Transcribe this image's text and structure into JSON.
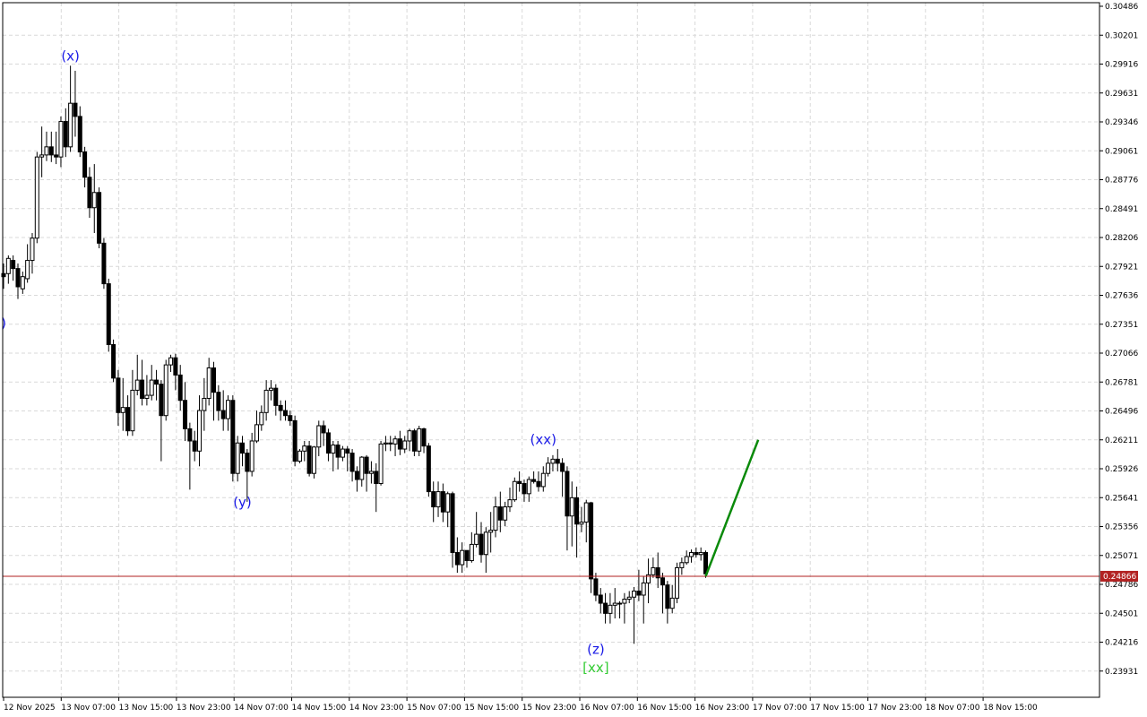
{
  "chart_data": {
    "type": "candlestick",
    "grid": true,
    "colors": {
      "bull_body": "#ffffff",
      "bear_body": "#000000",
      "wick": "#000000",
      "price_line": "#b22222",
      "price_tag_bg": "#b22222",
      "projection": "#0a8a0a",
      "wave_label": "#1a1ae6",
      "wave_label_alt": "#33cc33",
      "grid": "#d9d9d9"
    },
    "ylim": [
      0.23761,
      0.30486
    ],
    "y_ticks": [
      "0.30486",
      "0.30201",
      "0.29916",
      "0.29631",
      "0.29346",
      "0.29061",
      "0.28776",
      "0.28491",
      "0.28206",
      "0.27921",
      "0.27636",
      "0.27351",
      "0.27066",
      "0.26781",
      "0.26496",
      "0.26211",
      "0.25926",
      "0.25641",
      "0.25356",
      "0.25071",
      "0.24786",
      "0.24501",
      "0.24216",
      "0.23931"
    ],
    "x_ticks": [
      "12 Nov 2025",
      "13 Nov 07:00",
      "13 Nov 15:00",
      "13 Nov 23:00",
      "14 Nov 07:00",
      "14 Nov 15:00",
      "14 Nov 23:00",
      "15 Nov 07:00",
      "15 Nov 15:00",
      "15 Nov 23:00",
      "16 Nov 07:00",
      "16 Nov 15:00",
      "16 Nov 23:00",
      "17 Nov 07:00",
      "17 Nov 15:00",
      "17 Nov 23:00",
      "18 Nov 07:00",
      "18 Nov 15:00"
    ],
    "current_price": "0.24866",
    "candles": [
      [
        0.2785,
        0.2782,
        0.277,
        0.2795
      ],
      [
        0.2785,
        0.28,
        0.2775,
        0.2803
      ],
      [
        0.2798,
        0.279,
        0.2778,
        0.2803
      ],
      [
        0.279,
        0.2772,
        0.276,
        0.2795
      ],
      [
        0.277,
        0.2782,
        0.2765,
        0.2787
      ],
      [
        0.278,
        0.2798,
        0.2776,
        0.2814
      ],
      [
        0.2798,
        0.282,
        0.2785,
        0.2825
      ],
      [
        0.282,
        0.29,
        0.2815,
        0.2905
      ],
      [
        0.29,
        0.2902,
        0.288,
        0.293
      ],
      [
        0.2902,
        0.291,
        0.2896,
        0.2925
      ],
      [
        0.291,
        0.2902,
        0.2895,
        0.2925
      ],
      [
        0.2902,
        0.29,
        0.2893,
        0.2925
      ],
      [
        0.29,
        0.2935,
        0.289,
        0.294
      ],
      [
        0.2935,
        0.291,
        0.29,
        0.2948
      ],
      [
        0.291,
        0.2953,
        0.2905,
        0.299
      ],
      [
        0.2953,
        0.294,
        0.292,
        0.2985
      ],
      [
        0.294,
        0.2905,
        0.29,
        0.295
      ],
      [
        0.2905,
        0.288,
        0.287,
        0.291
      ],
      [
        0.288,
        0.285,
        0.284,
        0.289
      ],
      [
        0.285,
        0.2865,
        0.2825,
        0.2893
      ],
      [
        0.2865,
        0.2815,
        0.281,
        0.287
      ],
      [
        0.2815,
        0.2775,
        0.277,
        0.282
      ],
      [
        0.2775,
        0.2715,
        0.2708,
        0.278
      ],
      [
        0.2715,
        0.2682,
        0.2678,
        0.272
      ],
      [
        0.2682,
        0.2648,
        0.2635,
        0.269
      ],
      [
        0.2648,
        0.2653,
        0.263,
        0.2682
      ],
      [
        0.2653,
        0.263,
        0.2625,
        0.2665
      ],
      [
        0.263,
        0.267,
        0.2625,
        0.269
      ],
      [
        0.267,
        0.268,
        0.2665,
        0.2705
      ],
      [
        0.268,
        0.2662,
        0.2655,
        0.27
      ],
      [
        0.2662,
        0.2665,
        0.2655,
        0.2685
      ],
      [
        0.2665,
        0.268,
        0.266,
        0.2695
      ],
      [
        0.268,
        0.2676,
        0.266,
        0.269
      ],
      [
        0.2676,
        0.2645,
        0.26,
        0.268
      ],
      [
        0.2645,
        0.2695,
        0.264,
        0.27
      ],
      [
        0.2695,
        0.2702,
        0.2688,
        0.2705
      ],
      [
        0.2702,
        0.2685,
        0.267,
        0.2706
      ],
      [
        0.2685,
        0.266,
        0.265,
        0.2695
      ],
      [
        0.266,
        0.2632,
        0.262,
        0.2678
      ],
      [
        0.2632,
        0.262,
        0.2572,
        0.2638
      ],
      [
        0.262,
        0.261,
        0.26,
        0.263
      ],
      [
        0.261,
        0.265,
        0.2595,
        0.2665
      ],
      [
        0.265,
        0.2662,
        0.263,
        0.2682
      ],
      [
        0.2662,
        0.2692,
        0.2655,
        0.2702
      ],
      [
        0.2692,
        0.2668,
        0.264,
        0.2698
      ],
      [
        0.2668,
        0.265,
        0.264,
        0.2675
      ],
      [
        0.265,
        0.2642,
        0.263,
        0.267
      ],
      [
        0.2642,
        0.266,
        0.263,
        0.2665
      ],
      [
        0.266,
        0.2588,
        0.258,
        0.2665
      ],
      [
        0.2588,
        0.2618,
        0.258,
        0.2625
      ],
      [
        0.2618,
        0.2608,
        0.2595,
        0.2625
      ],
      [
        0.2608,
        0.259,
        0.256,
        0.2612
      ],
      [
        0.259,
        0.262,
        0.2585,
        0.2628
      ],
      [
        0.262,
        0.2636,
        0.2618,
        0.265
      ],
      [
        0.2636,
        0.2648,
        0.263,
        0.2655
      ],
      [
        0.2648,
        0.267,
        0.264,
        0.268
      ],
      [
        0.267,
        0.2672,
        0.266,
        0.268
      ],
      [
        0.2672,
        0.2655,
        0.2645,
        0.2676
      ],
      [
        0.2655,
        0.265,
        0.264,
        0.266
      ],
      [
        0.265,
        0.2645,
        0.264,
        0.266
      ],
      [
        0.2645,
        0.264,
        0.2635,
        0.265
      ],
      [
        0.264,
        0.26,
        0.2595,
        0.2645
      ],
      [
        0.26,
        0.261,
        0.2598,
        0.2612
      ],
      [
        0.261,
        0.2615,
        0.26,
        0.262
      ],
      [
        0.2615,
        0.2588,
        0.2585,
        0.262
      ],
      [
        0.2588,
        0.2614,
        0.2583,
        0.2615
      ],
      [
        0.2614,
        0.2635,
        0.2605,
        0.264
      ],
      [
        0.2635,
        0.2628,
        0.2615,
        0.264
      ],
      [
        0.2628,
        0.2608,
        0.26,
        0.2632
      ],
      [
        0.2608,
        0.2616,
        0.259,
        0.262
      ],
      [
        0.2616,
        0.2604,
        0.2592,
        0.262
      ],
      [
        0.2604,
        0.2612,
        0.26,
        0.2615
      ],
      [
        0.2612,
        0.2608,
        0.259,
        0.2615
      ],
      [
        0.2608,
        0.259,
        0.258,
        0.2612
      ],
      [
        0.259,
        0.2582,
        0.257,
        0.2595
      ],
      [
        0.2582,
        0.2604,
        0.2575,
        0.2605
      ],
      [
        0.2604,
        0.2588,
        0.257,
        0.2606
      ],
      [
        0.2588,
        0.259,
        0.2578,
        0.26
      ],
      [
        0.259,
        0.2578,
        0.255,
        0.2598
      ],
      [
        0.2578,
        0.2617,
        0.2576,
        0.262
      ],
      [
        0.2617,
        0.2618,
        0.261,
        0.2625
      ],
      [
        0.2618,
        0.2617,
        0.261,
        0.2625
      ],
      [
        0.2617,
        0.2622,
        0.2605,
        0.2625
      ],
      [
        0.2622,
        0.2612,
        0.2606,
        0.263
      ],
      [
        0.2612,
        0.262,
        0.2608,
        0.2625
      ],
      [
        0.262,
        0.263,
        0.261,
        0.2632
      ],
      [
        0.263,
        0.261,
        0.2605,
        0.2632
      ],
      [
        0.261,
        0.2632,
        0.2605,
        0.2635
      ],
      [
        0.2632,
        0.2615,
        0.2608,
        0.2633
      ],
      [
        0.2615,
        0.257,
        0.2565,
        0.2618
      ],
      [
        0.257,
        0.2555,
        0.254,
        0.258
      ],
      [
        0.2555,
        0.257,
        0.2545,
        0.258
      ],
      [
        0.257,
        0.255,
        0.254,
        0.2578
      ],
      [
        0.255,
        0.2568,
        0.2535,
        0.257
      ],
      [
        0.2568,
        0.251,
        0.2495,
        0.257
      ],
      [
        0.251,
        0.2498,
        0.249,
        0.2525
      ],
      [
        0.2498,
        0.2512,
        0.249,
        0.252
      ],
      [
        0.2512,
        0.2502,
        0.2495,
        0.2512
      ],
      [
        0.2502,
        0.2518,
        0.25,
        0.253
      ],
      [
        0.2518,
        0.2528,
        0.2515,
        0.255
      ],
      [
        0.2528,
        0.2508,
        0.25,
        0.254
      ],
      [
        0.2508,
        0.253,
        0.249,
        0.2535
      ],
      [
        0.253,
        0.2532,
        0.251,
        0.255
      ],
      [
        0.2532,
        0.2555,
        0.2525,
        0.2565
      ],
      [
        0.2555,
        0.2542,
        0.253,
        0.257
      ],
      [
        0.2542,
        0.2555,
        0.2536,
        0.256
      ],
      [
        0.2555,
        0.2562,
        0.255,
        0.2574
      ],
      [
        0.2562,
        0.258,
        0.256,
        0.2584
      ],
      [
        0.258,
        0.2578,
        0.257,
        0.259
      ],
      [
        0.2578,
        0.2568,
        0.256,
        0.2582
      ],
      [
        0.2568,
        0.2582,
        0.256,
        0.2585
      ],
      [
        0.2582,
        0.258,
        0.2578,
        0.259
      ],
      [
        0.258,
        0.2575,
        0.257,
        0.259
      ],
      [
        0.2575,
        0.2588,
        0.257,
        0.2595
      ],
      [
        0.2588,
        0.2598,
        0.2585,
        0.2604
      ],
      [
        0.2598,
        0.2602,
        0.259,
        0.2606
      ],
      [
        0.2602,
        0.2598,
        0.259,
        0.2612
      ],
      [
        0.2598,
        0.259,
        0.2565,
        0.2603
      ],
      [
        0.259,
        0.2546,
        0.2512,
        0.2595
      ],
      [
        0.2546,
        0.2564,
        0.2516,
        0.258
      ],
      [
        0.2564,
        0.2538,
        0.2505,
        0.2575
      ],
      [
        0.2538,
        0.254,
        0.253,
        0.2555
      ],
      [
        0.254,
        0.2559,
        0.252,
        0.2562
      ],
      [
        0.2559,
        0.2484,
        0.247,
        0.256
      ],
      [
        0.2484,
        0.2468,
        0.2462,
        0.249
      ],
      [
        0.2468,
        0.246,
        0.245,
        0.2475
      ],
      [
        0.246,
        0.245,
        0.244,
        0.247
      ],
      [
        0.245,
        0.2458,
        0.244,
        0.247
      ],
      [
        0.2458,
        0.246,
        0.2445,
        0.2475
      ],
      [
        0.246,
        0.246,
        0.2445,
        0.2462
      ],
      [
        0.246,
        0.2464,
        0.244,
        0.247
      ],
      [
        0.2464,
        0.2466,
        0.246,
        0.2472
      ],
      [
        0.2466,
        0.2472,
        0.242,
        0.2476
      ],
      [
        0.2472,
        0.2468,
        0.2462,
        0.2493
      ],
      [
        0.2468,
        0.248,
        0.244,
        0.2487
      ],
      [
        0.248,
        0.2488,
        0.246,
        0.2504
      ],
      [
        0.2488,
        0.2495,
        0.2485,
        0.2505
      ],
      [
        0.2495,
        0.2485,
        0.2475,
        0.251
      ],
      [
        0.2485,
        0.2478,
        0.245,
        0.249
      ],
      [
        0.2478,
        0.2455,
        0.244,
        0.2482
      ],
      [
        0.2455,
        0.2465,
        0.245,
        0.2478
      ],
      [
        0.2465,
        0.2495,
        0.246,
        0.25
      ],
      [
        0.2495,
        0.25,
        0.2488,
        0.2505
      ],
      [
        0.25,
        0.2506,
        0.2498,
        0.2512
      ],
      [
        0.2506,
        0.251,
        0.25,
        0.2513
      ],
      [
        0.251,
        0.2508,
        0.2505,
        0.2515
      ],
      [
        0.2508,
        0.251,
        0.2502,
        0.2515
      ],
      [
        0.251,
        0.2489,
        0.2485,
        0.2512
      ]
    ],
    "projection": [
      [
        0.24866,
        0.26211
      ]
    ],
    "wave_labels": [
      {
        "text": "(x)",
        "x_index": 14,
        "price": 0.2995
      },
      {
        "text": ")",
        "x_index": 0,
        "price": 0.2732
      },
      {
        "text": "(y)",
        "x_index": 50,
        "price": 0.2555
      },
      {
        "text": "(xx)",
        "x_index": 113,
        "price": 0.2617
      },
      {
        "text": "(z)",
        "x_index": 124,
        "price": 0.241
      },
      {
        "text": "[xx]",
        "x_index": 124,
        "price": 0.2392,
        "alt": true
      }
    ]
  }
}
